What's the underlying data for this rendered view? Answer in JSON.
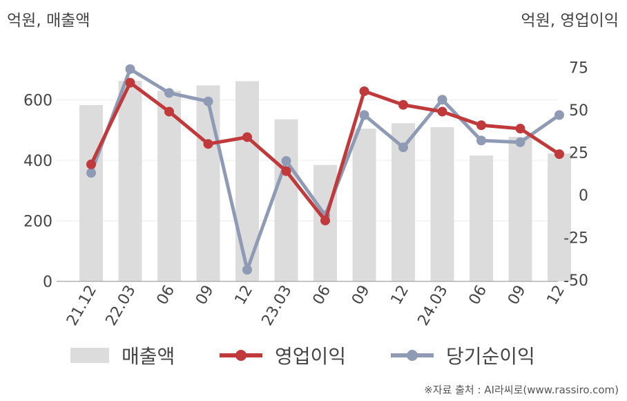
{
  "header": {
    "unit_left": "억원, 매출액",
    "unit_right": "억원, 영업이익"
  },
  "footer": {
    "source": "※자료 출처 : AI라씨로(www.rassiro.com)"
  },
  "chart_data": {
    "type": "bar",
    "categories": [
      "21.12",
      "22.03",
      "06",
      "09",
      "12",
      "23.03",
      "06",
      "09",
      "12",
      "24.03",
      "06",
      "09",
      "12"
    ],
    "series": [
      {
        "name": "매출액",
        "type": "bar",
        "axis": "left",
        "color": "#dcdcdc",
        "values": [
          583,
          663,
          630,
          648,
          662,
          536,
          385,
          505,
          523,
          510,
          416,
          478,
          423
        ]
      },
      {
        "name": "영업이익",
        "type": "line",
        "axis": "right",
        "color": "#c0393b",
        "values": [
          18,
          66,
          49,
          30,
          34,
          14,
          -15,
          61,
          53,
          49,
          41,
          39,
          24
        ]
      },
      {
        "name": "당기순이익",
        "type": "line",
        "axis": "right",
        "color": "#8f9bb5",
        "values": [
          13,
          74,
          60,
          55,
          -44,
          20,
          -12,
          47,
          28,
          56,
          32,
          31,
          47
        ]
      }
    ],
    "y_left": {
      "ylim": [
        0,
        720
      ],
      "ticks": [
        0,
        200,
        400,
        600
      ]
    },
    "y_right": {
      "ylim": [
        -50,
        80
      ],
      "ticks": [
        -50,
        -25,
        0,
        25,
        50,
        75
      ]
    },
    "grid": true,
    "legend_position": "bottom"
  }
}
